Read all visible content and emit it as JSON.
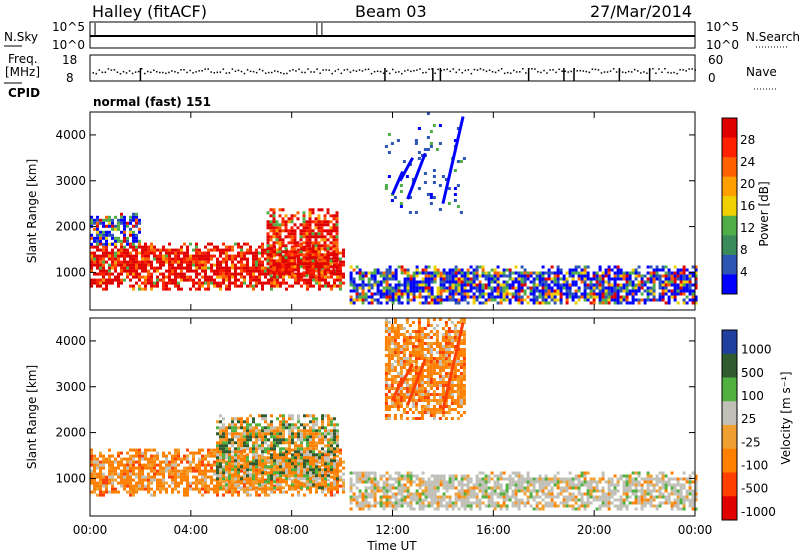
{
  "header": {
    "station": "Halley (fitACF)",
    "beam": "Beam 03",
    "date": "27/Mar/2014"
  },
  "panels": {
    "nsky_label": "N.Sky",
    "nsearch_label": "N.Search",
    "nsky_ticks": [
      "10^5",
      "10^0"
    ],
    "freq_label_line1": "Freq.",
    "freq_label_line2": "[MHz]",
    "freq_ticks": [
      "18",
      "8"
    ],
    "nave_label": "Nave",
    "nave_ticks": [
      "60",
      "0"
    ],
    "cpid_label": "CPID",
    "cpid_value": "normal (fast) 151"
  },
  "colors": {
    "power_scale": [
      "#0000ff",
      "#2d56b4",
      "#3a8a5a",
      "#4fae48",
      "#f0d000",
      "#ffa000",
      "#ff6000",
      "#ff2000",
      "#e00000"
    ],
    "velocity_scale": [
      "#2040a0",
      "#305a30",
      "#50b040",
      "#c0c0b8",
      "#f0a030",
      "#ff8000",
      "#ff4000",
      "#e00000"
    ]
  },
  "chart_data": [
    {
      "type": "heatmap",
      "panel": "power",
      "xlabel": "",
      "ylabel": "Slant Range [km]",
      "xlim_hours": [
        0,
        24
      ],
      "ylim": [
        180,
        4500
      ],
      "y_ticks": [
        "1000",
        "2000",
        "3000",
        "4000"
      ],
      "colorbar_label": "Power [dB]",
      "colorbar_ticks": [
        "4",
        "8",
        "12",
        "16",
        "20",
        "24",
        "28"
      ],
      "colorbar_range": [
        0,
        30
      ],
      "regions": [
        {
          "t": [
            0.0,
            10.0
          ],
          "r": [
            650,
            1650
          ],
          "level": "high"
        },
        {
          "t": [
            7.0,
            9.8
          ],
          "r": [
            900,
            2400
          ],
          "level": "high"
        },
        {
          "t": [
            0.0,
            2.0
          ],
          "r": [
            1600,
            2300
          ],
          "level": "medium"
        },
        {
          "t": [
            10.3,
            24.0
          ],
          "r": [
            300,
            1150
          ],
          "level": "medium"
        },
        {
          "t": [
            11.7,
            14.9
          ],
          "r": [
            2300,
            4500
          ],
          "level": "sparse"
        }
      ]
    },
    {
      "type": "heatmap",
      "panel": "velocity",
      "xlabel": "Time UT",
      "ylabel": "Slant Range [km]",
      "xlim_hours": [
        0,
        24
      ],
      "ylim": [
        180,
        4500
      ],
      "x_ticks": [
        "00:00",
        "04:00",
        "08:00",
        "12:00",
        "16:00",
        "20:00",
        "00:00"
      ],
      "y_ticks": [
        "1000",
        "2000",
        "3000",
        "4000"
      ],
      "colorbar_label": "Velocity [m s⁻¹]",
      "colorbar_ticks": [
        "1000",
        "500",
        "100",
        "25",
        "-25",
        "-100",
        "-500",
        "-1000"
      ],
      "regions": [
        {
          "t": [
            0.0,
            10.0
          ],
          "r": [
            650,
            1650
          ],
          "level": "away_negative"
        },
        {
          "t": [
            5.0,
            9.8
          ],
          "r": [
            800,
            2400
          ],
          "level": "mixed"
        },
        {
          "t": [
            10.3,
            24.0
          ],
          "r": [
            300,
            1150
          ],
          "level": "ground_scatter"
        },
        {
          "t": [
            11.7,
            14.9
          ],
          "r": [
            2300,
            4500
          ],
          "level": "away_negative"
        }
      ]
    }
  ]
}
